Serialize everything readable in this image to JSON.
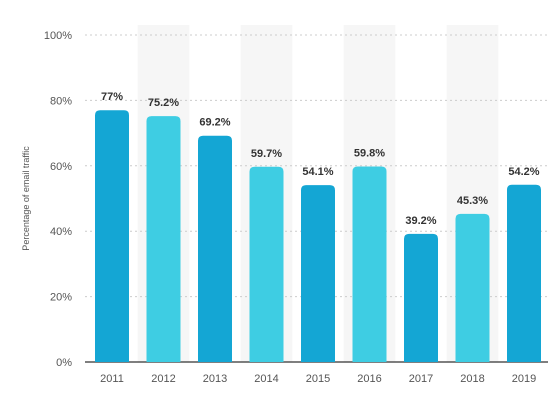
{
  "chart_data": {
    "type": "bar",
    "title": "",
    "xlabel": "",
    "ylabel": "Percentage of email traffic",
    "categories": [
      "2011",
      "2012",
      "2013",
      "2014",
      "2015",
      "2016",
      "2017",
      "2018",
      "2019"
    ],
    "values": [
      77,
      75.2,
      69.2,
      59.7,
      54.1,
      59.8,
      39.2,
      45.3,
      54.2
    ],
    "value_labels": [
      "77%",
      "75.2%",
      "69.2%",
      "59.7%",
      "54.1%",
      "59.8%",
      "39.2%",
      "45.3%",
      "54.2%"
    ],
    "ylim": [
      0,
      100
    ],
    "yticks": [
      0,
      20,
      40,
      60,
      80,
      100
    ],
    "ytick_labels": [
      "0%",
      "20%",
      "40%",
      "60%",
      "80%",
      "100%"
    ],
    "grid": true,
    "colors": {
      "dark_bar": "#14a6d4",
      "light_bar": "#3ecde3",
      "alt_band": "#f6f6f6",
      "grid": "#cccccc",
      "axis": "#333333"
    }
  }
}
